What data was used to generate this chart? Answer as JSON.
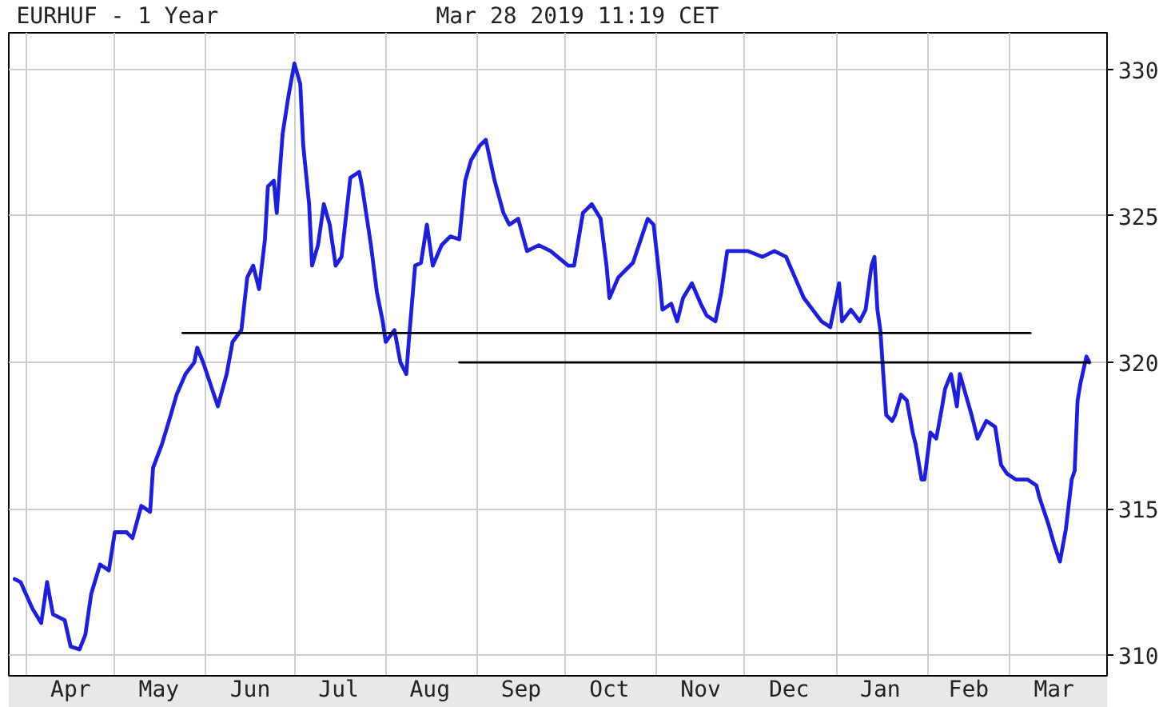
{
  "chart_data": {
    "type": "line",
    "title": "EURHUF - 1 Year",
    "subtitle": "Mar 28 2019 11:19 CET",
    "xlim": [
      "2018-03-26",
      "2019-04-03"
    ],
    "xticks": [
      {
        "value": "2018-04-01",
        "label": null
      },
      {
        "value": "2018-04-16",
        "label": "Apr"
      },
      {
        "value": "2018-05-01",
        "label": null
      },
      {
        "value": "2018-05-16",
        "label": "May"
      },
      {
        "value": "2018-06-01",
        "label": null
      },
      {
        "value": "2018-06-16",
        "label": "Jun"
      },
      {
        "value": "2018-07-01",
        "label": null
      },
      {
        "value": "2018-07-16",
        "label": "Jul"
      },
      {
        "value": "2018-08-01",
        "label": null
      },
      {
        "value": "2018-08-16",
        "label": "Aug"
      },
      {
        "value": "2018-09-01",
        "label": null
      },
      {
        "value": "2018-09-16",
        "label": "Sep"
      },
      {
        "value": "2018-10-01",
        "label": null
      },
      {
        "value": "2018-10-16",
        "label": "Oct"
      },
      {
        "value": "2018-11-01",
        "label": null
      },
      {
        "value": "2018-11-16",
        "label": "Nov"
      },
      {
        "value": "2018-12-01",
        "label": null
      },
      {
        "value": "2018-12-16",
        "label": "Dec"
      },
      {
        "value": "2019-01-01",
        "label": null
      },
      {
        "value": "2019-01-16",
        "label": "Jan"
      },
      {
        "value": "2019-02-01",
        "label": null
      },
      {
        "value": "2019-02-15",
        "label": "Feb"
      },
      {
        "value": "2019-03-01",
        "label": null
      },
      {
        "value": "2019-03-16",
        "label": "Mar"
      }
    ],
    "ylim": [
      309.3,
      331.25
    ],
    "yticks": [
      310,
      315,
      320,
      325,
      330
    ],
    "grid": true,
    "series": [
      {
        "color": "#1f1fd6",
        "x": [
          "2018-03-28",
          "2018-03-30",
          "2018-04-03",
          "2018-04-06",
          "2018-04-08",
          "2018-04-10",
          "2018-04-14",
          "2018-04-16",
          "2018-04-19",
          "2018-04-21",
          "2018-04-23",
          "2018-04-26",
          "2018-04-29",
          "2018-05-01",
          "2018-05-05",
          "2018-05-07",
          "2018-05-10",
          "2018-05-13",
          "2018-05-14",
          "2018-05-17",
          "2018-05-20",
          "2018-05-22",
          "2018-05-25",
          "2018-05-28",
          "2018-05-29",
          "2018-05-31",
          "2018-06-03",
          "2018-06-05",
          "2018-06-08",
          "2018-06-10",
          "2018-06-13",
          "2018-06-15",
          "2018-06-17",
          "2018-06-19",
          "2018-06-21",
          "2018-06-22",
          "2018-06-24",
          "2018-06-25",
          "2018-06-27",
          "2018-06-29",
          "2018-07-01",
          "2018-07-03",
          "2018-07-04",
          "2018-07-06",
          "2018-07-07",
          "2018-07-09",
          "2018-07-11",
          "2018-07-13",
          "2018-07-15",
          "2018-07-17",
          "2018-07-20",
          "2018-07-23",
          "2018-07-24",
          "2018-07-27",
          "2018-07-29",
          "2018-07-31",
          "2018-08-01",
          "2018-08-04",
          "2018-08-06",
          "2018-08-08",
          "2018-08-09",
          "2018-08-11",
          "2018-08-13",
          "2018-08-15",
          "2018-08-17",
          "2018-08-20",
          "2018-08-23",
          "2018-08-26",
          "2018-08-28",
          "2018-08-30",
          "2018-09-02",
          "2018-09-04",
          "2018-09-07",
          "2018-09-10",
          "2018-09-12",
          "2018-09-15",
          "2018-09-18",
          "2018-09-22",
          "2018-09-26",
          "2018-10-02",
          "2018-10-04",
          "2018-10-07",
          "2018-10-10",
          "2018-10-13",
          "2018-10-15",
          "2018-10-16",
          "2018-10-19",
          "2018-10-21",
          "2018-10-24",
          "2018-10-27",
          "2018-10-29",
          "2018-10-31",
          "2018-11-02",
          "2018-11-03",
          "2018-11-06",
          "2018-11-08",
          "2018-11-10",
          "2018-11-13",
          "2018-11-16",
          "2018-11-18",
          "2018-11-21",
          "2018-11-23",
          "2018-11-25",
          "2018-11-28",
          "2018-12-02",
          "2018-12-07",
          "2018-12-11",
          "2018-12-15",
          "2018-12-18",
          "2018-12-21",
          "2018-12-24",
          "2018-12-27",
          "2018-12-30",
          "2019-01-02",
          "2019-01-03",
          "2019-01-06",
          "2019-01-09",
          "2019-01-11",
          "2019-01-13",
          "2019-01-14",
          "2019-01-15",
          "2019-01-16",
          "2019-01-17",
          "2019-01-18",
          "2019-01-20",
          "2019-01-21",
          "2019-01-23",
          "2019-01-25",
          "2019-01-27",
          "2019-01-28",
          "2019-01-30",
          "2019-01-31",
          "2019-02-02",
          "2019-02-04",
          "2019-02-06",
          "2019-02-07",
          "2019-02-09",
          "2019-02-11",
          "2019-02-12",
          "2019-02-14",
          "2019-02-16",
          "2019-02-18",
          "2019-02-21",
          "2019-02-24",
          "2019-02-26",
          "2019-02-28",
          "2019-03-03",
          "2019-03-07",
          "2019-03-10",
          "2019-03-11",
          "2019-03-14",
          "2019-03-16",
          "2019-03-18",
          "2019-03-20",
          "2019-03-22",
          "2019-03-23",
          "2019-03-24",
          "2019-03-25",
          "2019-03-27",
          "2019-03-28"
        ],
        "values": [
          312.6,
          312.5,
          311.6,
          311.1,
          312.5,
          311.4,
          311.2,
          310.3,
          310.2,
          310.7,
          312.1,
          313.1,
          312.9,
          314.2,
          314.2,
          314.0,
          315.1,
          314.9,
          316.4,
          317.2,
          318.2,
          318.9,
          319.6,
          320.0,
          320.5,
          320.0,
          319.1,
          318.5,
          319.6,
          320.7,
          321.1,
          322.9,
          323.3,
          322.5,
          324.2,
          326.0,
          326.2,
          325.1,
          327.8,
          329.1,
          330.2,
          329.5,
          327.4,
          325.4,
          323.3,
          324.0,
          325.4,
          324.7,
          323.3,
          323.6,
          326.3,
          326.5,
          326.0,
          324.0,
          322.4,
          321.4,
          320.7,
          321.1,
          320.0,
          319.6,
          320.9,
          323.3,
          323.4,
          324.7,
          323.3,
          324.0,
          324.3,
          324.2,
          326.2,
          326.9,
          327.4,
          327.6,
          326.2,
          325.1,
          324.7,
          324.9,
          323.8,
          324.0,
          323.8,
          323.3,
          323.3,
          325.1,
          325.4,
          324.9,
          323.3,
          322.2,
          322.9,
          323.1,
          323.4,
          324.3,
          324.9,
          324.7,
          322.9,
          321.8,
          322.0,
          321.4,
          322.2,
          322.7,
          322.0,
          321.6,
          321.4,
          322.4,
          323.8,
          323.8,
          323.8,
          323.6,
          323.8,
          323.6,
          322.9,
          322.2,
          321.8,
          321.4,
          321.2,
          322.7,
          321.4,
          321.8,
          321.4,
          321.8,
          323.3,
          323.6,
          321.8,
          321.1,
          319.6,
          318.2,
          318.0,
          318.2,
          318.9,
          318.7,
          317.6,
          317.2,
          316.0,
          316.0,
          317.6,
          317.4,
          318.5,
          319.1,
          319.6,
          318.5,
          319.6,
          318.9,
          318.2,
          317.4,
          318.0,
          317.8,
          316.5,
          316.2,
          316.0,
          316.0,
          315.8,
          315.4,
          314.5,
          313.8,
          313.2,
          314.3,
          316.0,
          316.3,
          318.7,
          319.3,
          320.2,
          320.0
        ]
      },
      {
        "type": "line",
        "color": "#000000",
        "x": [
          "2018-05-24",
          "2019-03-08"
        ],
        "values": [
          321,
          321
        ]
      },
      {
        "type": "line",
        "color": "#000000",
        "x": [
          "2018-08-26",
          "2019-03-28"
        ],
        "values": [
          320,
          320
        ]
      }
    ]
  }
}
